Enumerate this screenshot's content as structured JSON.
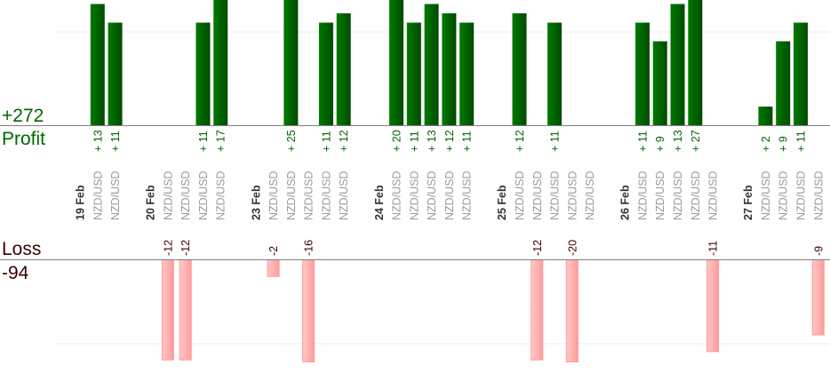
{
  "chart_data": {
    "type": "bar",
    "profit": {
      "label": "Profit",
      "total": "+272",
      "color": "#006600"
    },
    "loss": {
      "label": "Loss",
      "total": "-94",
      "color": "#3a0000",
      "bar_color": "#ffaaaa"
    },
    "days": [
      {
        "date": "19 Feb",
        "trades": [
          {
            "pair": "NZD/USD",
            "value": 13
          },
          {
            "pair": "NZD/USD",
            "value": 11
          }
        ]
      },
      {
        "date": "20 Feb",
        "trades": [
          {
            "pair": "NZD/USD",
            "value": -12
          },
          {
            "pair": "NZD/USD",
            "value": -12
          },
          {
            "pair": "NZD/USD",
            "value": 11
          },
          {
            "pair": "NZD/USD",
            "value": 17
          }
        ]
      },
      {
        "date": "23 Feb",
        "trades": [
          {
            "pair": "NZD/USD",
            "value": -2
          },
          {
            "pair": "NZD/USD",
            "value": 25
          },
          {
            "pair": "NZD/USD",
            "value": -16
          },
          {
            "pair": "NZD/USD",
            "value": 11
          },
          {
            "pair": "NZD/USD",
            "value": 12
          }
        ]
      },
      {
        "date": "24 Feb",
        "trades": [
          {
            "pair": "NZD/USD",
            "value": 20
          },
          {
            "pair": "NZD/USD",
            "value": 11
          },
          {
            "pair": "NZD/USD",
            "value": 13
          },
          {
            "pair": "NZD/USD",
            "value": 12
          },
          {
            "pair": "NZD/USD",
            "value": 11
          }
        ]
      },
      {
        "date": "25 Feb",
        "trades": [
          {
            "pair": "NZD/USD",
            "value": 12
          },
          {
            "pair": "NZD/USD",
            "value": -12
          },
          {
            "pair": "NZD/USD",
            "value": 11
          },
          {
            "pair": "NZD/USD",
            "value": -20
          },
          {
            "pair": "NZD/USD",
            "value": null
          }
        ]
      },
      {
        "date": "26 Feb",
        "trades": [
          {
            "pair": "NZD/USD",
            "value": 11
          },
          {
            "pair": "NZD/USD",
            "value": 9
          },
          {
            "pair": "NZD/USD",
            "value": 13
          },
          {
            "pair": "NZD/USD",
            "value": 27
          },
          {
            "pair": "NZD/USD",
            "value": -11
          }
        ]
      },
      {
        "date": "27 Feb",
        "trades": [
          {
            "pair": "NZD/USD",
            "value": 2
          },
          {
            "pair": "NZD/USD",
            "value": 9
          },
          {
            "pair": "NZD/USD",
            "value": 11
          },
          {
            "pair": "NZD/USD",
            "value": -9
          }
        ]
      }
    ]
  }
}
